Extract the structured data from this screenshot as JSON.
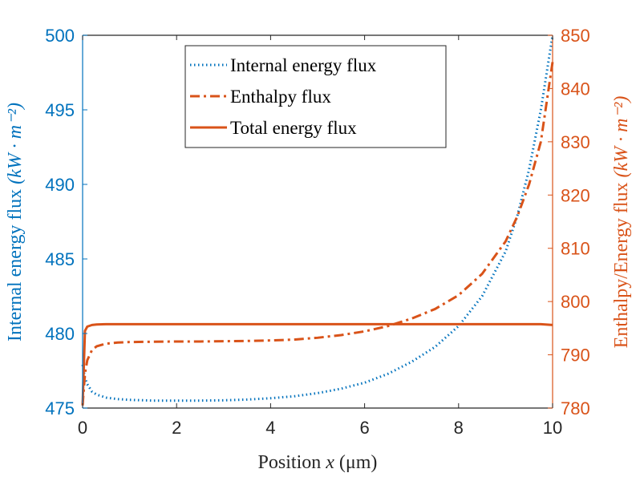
{
  "chart_data": {
    "type": "line",
    "x": [
      0,
      0.05,
      0.1,
      0.2,
      0.3,
      0.5,
      0.75,
      1,
      1.5,
      2,
      2.5,
      3,
      3.5,
      4,
      4.5,
      5,
      5.5,
      6,
      6.5,
      7,
      7.5,
      8,
      8.5,
      9,
      9.25,
      9.5,
      9.75,
      10
    ],
    "xlabel_text": "Position",
    "xlabel_var": "x",
    "xlabel_unit": "(μm)",
    "xlim": [
      0,
      10
    ],
    "xticks": [
      "0",
      "2",
      "4",
      "6",
      "8",
      "10"
    ],
    "ylabel_left": "Internal energy flux",
    "ylabel_left_unit": "(kW · m⁻²)",
    "ylim_left": [
      475,
      500
    ],
    "yticks_left": [
      "475",
      "480",
      "485",
      "490",
      "495",
      "500"
    ],
    "ylabel_right": "Enthalpy/Energy flux",
    "ylabel_right_unit": "(kW · m⁻²)",
    "ylim_right": [
      780,
      850
    ],
    "yticks_right": [
      "780",
      "790",
      "800",
      "810",
      "820",
      "830",
      "840",
      "850"
    ],
    "series": [
      {
        "name": "Internal energy flux",
        "axis": "left",
        "style": "dotted",
        "color": "#0072BD",
        "values": [
          477.9,
          477.0,
          476.6,
          476.1,
          475.9,
          475.7,
          475.6,
          475.55,
          475.5,
          475.5,
          475.5,
          475.52,
          475.57,
          475.66,
          475.79,
          476.0,
          476.3,
          476.7,
          477.3,
          478.1,
          479.1,
          480.5,
          482.5,
          485.5,
          487.9,
          491.0,
          495.0,
          500.0
        ]
      },
      {
        "name": "Enthalpy flux",
        "axis": "right",
        "style": "dashdot",
        "color": "#D95319",
        "values": [
          780.5,
          786.5,
          789.0,
          790.9,
          791.6,
          792.1,
          792.3,
          792.4,
          792.45,
          792.5,
          792.5,
          792.55,
          792.6,
          792.7,
          792.85,
          793.2,
          793.7,
          794.4,
          795.4,
          796.8,
          798.6,
          801.2,
          805.2,
          811.3,
          816.0,
          822.0,
          830.0,
          845.0
        ]
      },
      {
        "name": "Total energy flux",
        "axis": "right",
        "style": "solid",
        "color": "#D95319",
        "values": [
          780.5,
          794.5,
          795.3,
          795.6,
          795.7,
          795.75,
          795.75,
          795.75,
          795.75,
          795.75,
          795.75,
          795.75,
          795.75,
          795.75,
          795.75,
          795.75,
          795.75,
          795.75,
          795.75,
          795.75,
          795.75,
          795.75,
          795.75,
          795.75,
          795.75,
          795.75,
          795.75,
          795.6
        ]
      }
    ],
    "legend_position": "top-center",
    "grid": false
  }
}
